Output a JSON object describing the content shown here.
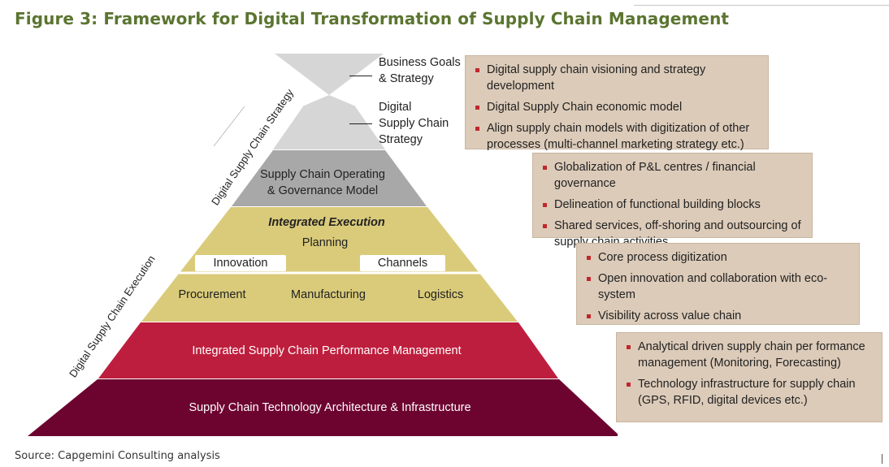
{
  "title": "Figure 3: Framework for Digital Transformation of Supply Chain Management",
  "source": "Source: Capgemini Consulting analysis",
  "colors": {
    "title": "#5b7530",
    "top_tier": "#d6d6d6",
    "governance": "#a8a8a8",
    "execution": "#dacb7a",
    "performance": "#be1e3d",
    "infrastructure": "#6d0430",
    "box": "#dccbb9",
    "bullet": "#c0272d"
  },
  "side_labels": {
    "strategy": "Digital Supply Chain Strategy",
    "execution": "Digital Supply Chain Execution"
  },
  "top_labels": {
    "business_goals": "Business Goals\n& Strategy",
    "dsc_strategy": "Digital\nSupply Chain\nStrategy"
  },
  "pyramid": {
    "governance": "Supply Chain Operating\n& Governance Model",
    "integrated_execution": "Integrated Execution",
    "planning": "Planning",
    "innovation": "Innovation",
    "channels": "Channels",
    "procurement": "Procurement",
    "manufacturing": "Manufacturing",
    "logistics": "Logistics",
    "performance": "Integrated Supply Chain Performance Management",
    "infrastructure": "Supply Chain Technology Architecture & Infrastructure"
  },
  "boxes": [
    {
      "items": [
        "Digital supply chain visioning and strategy development",
        "Digital Supply Chain economic model",
        "Align supply chain models with digitization of other processes (multi-channel marketing strategy etc.)"
      ]
    },
    {
      "items": [
        "Globalization of P&L centres / financial governance",
        "Delineation of functional building blocks",
        "Shared services, off-shoring and outsourcing of supply chain activities"
      ]
    },
    {
      "items": [
        "Core process digitization",
        "Open innovation and collaboration with eco-system",
        "Visibility across value chain"
      ]
    },
    {
      "items": [
        "Analytical driven supply chain per formance management (Monitoring, Forecasting)",
        "Technology infrastructure for supply chain (GPS, RFID, digital devices etc.)"
      ]
    }
  ]
}
